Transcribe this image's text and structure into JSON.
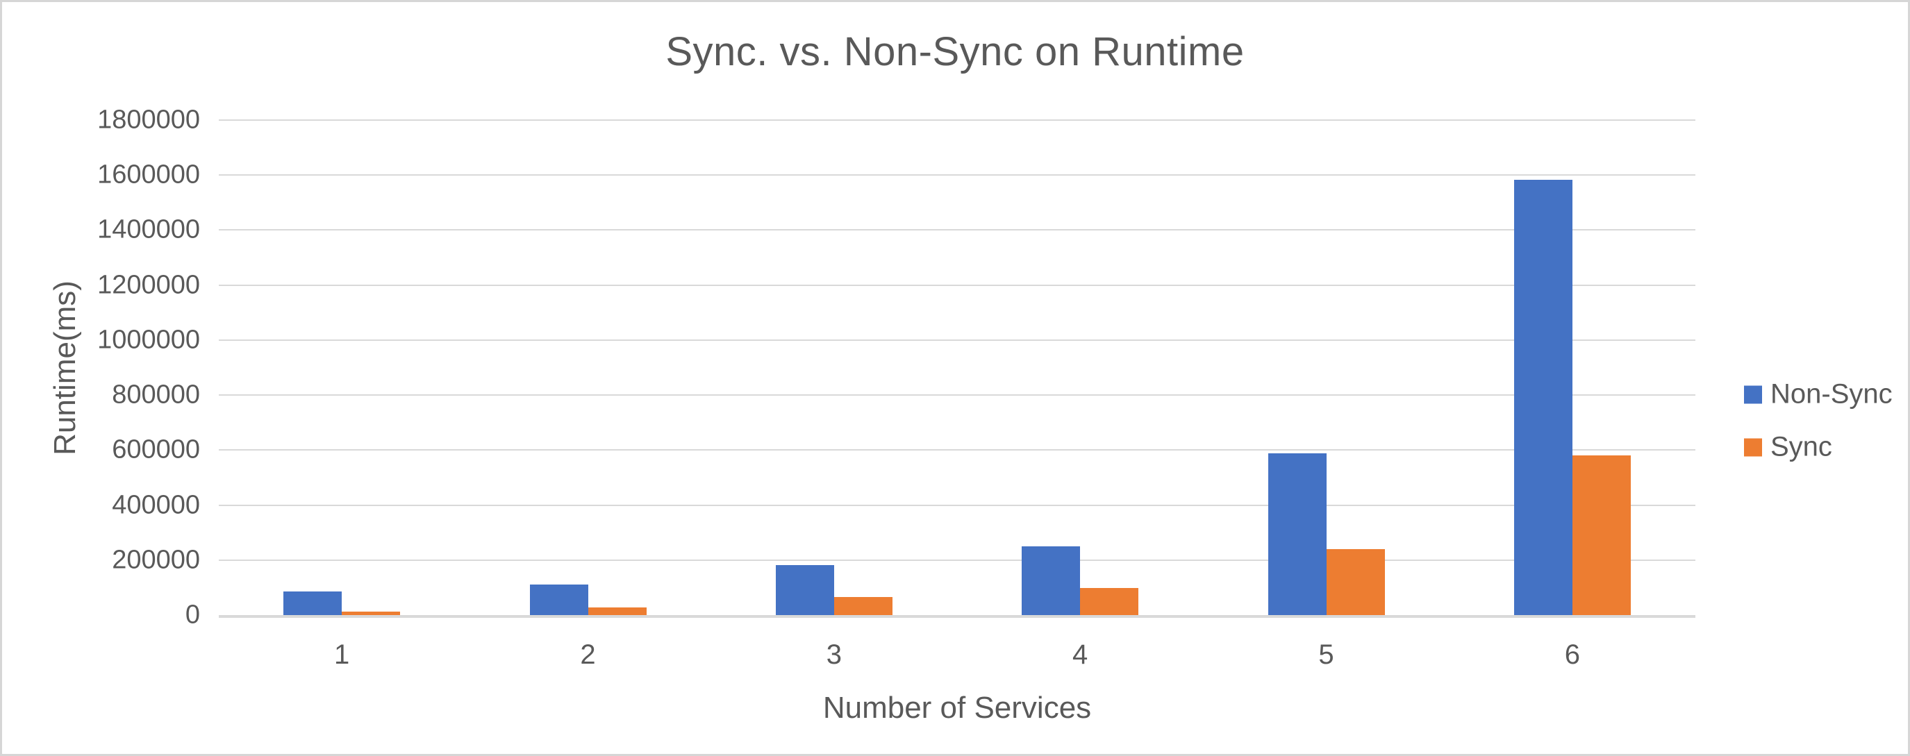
{
  "chart_data": {
    "type": "bar",
    "title": "Sync. vs. Non-Sync on Runtime",
    "xlabel": "Number of Services",
    "ylabel": "Runtime(ms)",
    "categories": [
      "1",
      "2",
      "3",
      "4",
      "5",
      "6"
    ],
    "series": [
      {
        "name": "Non-Sync",
        "color": "#4472C4",
        "values": [
          86000,
          112000,
          181000,
          250000,
          588000,
          1582000
        ]
      },
      {
        "name": "Sync",
        "color": "#ED7D31",
        "values": [
          13000,
          29000,
          66000,
          98000,
          241000,
          581000
        ]
      }
    ],
    "ylim": [
      0,
      1800000
    ],
    "ytick_step": 200000,
    "grid": true,
    "legend_position": "right"
  },
  "colors": {
    "bar_blue": "#4472C4",
    "bar_orange": "#ED7D31",
    "axis_text": "#595959",
    "gridline": "#D9D9D9",
    "frame_border": "#D6D6D6",
    "background": "#FFFFFF"
  }
}
